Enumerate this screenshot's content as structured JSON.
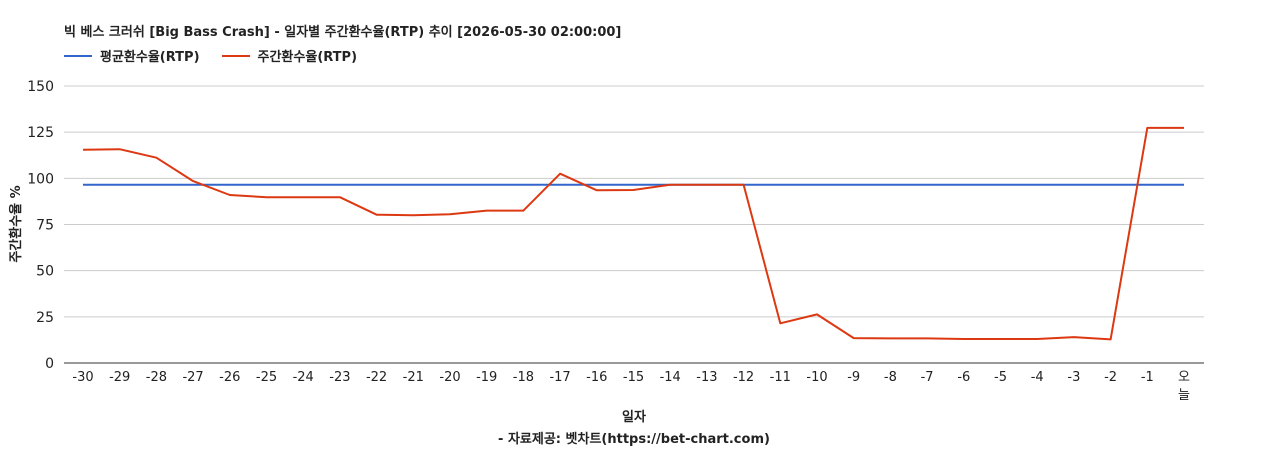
{
  "title": "빅 베스 크러쉬 [Big Bass Crash] - 일자별 주간환수율(RTP) 추이 [2026-05-30 02:00:00]",
  "footer": "- 자료제공: 벳차트(https://bet-chart.com)",
  "chart_data": {
    "type": "line",
    "xlabel": "일자",
    "ylabel": "주간환수율 %",
    "ylim": [
      0,
      150
    ],
    "yticks": [
      0,
      25,
      50,
      75,
      100,
      125,
      150
    ],
    "grid": true,
    "legend_position": "top-left",
    "categories": [
      "-30",
      "-29",
      "-28",
      "-27",
      "-26",
      "-25",
      "-24",
      "-23",
      "-22",
      "-21",
      "-20",
      "-19",
      "-18",
      "-17",
      "-16",
      "-15",
      "-14",
      "-13",
      "-12",
      "-11",
      "-10",
      "-9",
      "-8",
      "-7",
      "-6",
      "-5",
      "-4",
      "-3",
      "-2",
      "-1",
      "오늘"
    ],
    "series": [
      {
        "name": "평균환수율(RTP)",
        "color": "#3366cc",
        "values": [
          96.5,
          96.5,
          96.5,
          96.5,
          96.5,
          96.5,
          96.5,
          96.5,
          96.5,
          96.5,
          96.5,
          96.5,
          96.5,
          96.5,
          96.5,
          96.5,
          96.5,
          96.5,
          96.5,
          96.5,
          96.5,
          96.5,
          96.5,
          96.5,
          96.5,
          96.5,
          96.5,
          96.5,
          96.5,
          96.5,
          96.5
        ]
      },
      {
        "name": "주간환수율(RTP)",
        "color": "#dc3912",
        "values": [
          115.5,
          115.8,
          111.2,
          98.5,
          91,
          89.8,
          89.8,
          89.8,
          80.3,
          80,
          80.5,
          82.5,
          82.5,
          102.5,
          93.5,
          93.7,
          96.5,
          96.5,
          96.5,
          21.5,
          26.3,
          13.5,
          13.3,
          13.3,
          13,
          13,
          13,
          14,
          12.8,
          127.3,
          127.3
        ]
      }
    ]
  }
}
